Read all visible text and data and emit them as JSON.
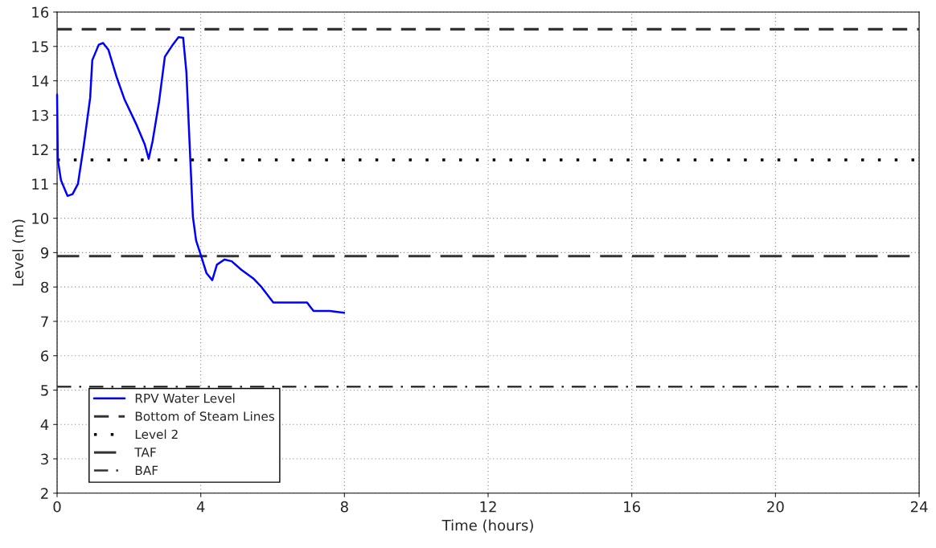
{
  "chart_data": {
    "type": "line",
    "xlabel": "Time (hours)",
    "ylabel": "Level (m)",
    "xlim": [
      0,
      24
    ],
    "xticks": [
      0,
      4,
      8,
      12,
      16,
      20,
      24
    ],
    "ylim": [
      2,
      16
    ],
    "yticks": [
      2,
      3,
      4,
      5,
      6,
      7,
      8,
      9,
      10,
      11,
      12,
      13,
      14,
      15,
      16
    ],
    "grid": true,
    "legend": "bottom left",
    "series": [
      {
        "name": "RPV Water Level",
        "color": "#0000ff",
        "line_style": "solid",
        "x": [
          0,
          0.02,
          0.11,
          0.29,
          0.43,
          0.58,
          0.74,
          0.92,
          0.98,
          1.16,
          1.28,
          1.43,
          1.66,
          1.88,
          2.22,
          2.44,
          2.55,
          2.66,
          2.84,
          3.0,
          3.22,
          3.38,
          3.51,
          3.6,
          3.69,
          3.78,
          3.87,
          4.01,
          4.16,
          4.32,
          4.45,
          4.66,
          4.86,
          5.13,
          5.46,
          5.69,
          6.02,
          6.96,
          7.03,
          7.14,
          7.59,
          7.99
        ],
        "values": [
          13.6,
          11.7,
          11.1,
          10.65,
          10.7,
          11.0,
          12.1,
          13.5,
          14.6,
          15.05,
          15.1,
          14.9,
          14.1,
          13.45,
          12.7,
          12.15,
          11.73,
          12.25,
          13.4,
          14.7,
          15.05,
          15.27,
          15.25,
          14.25,
          12.15,
          10.05,
          9.35,
          8.9,
          8.4,
          8.2,
          8.65,
          8.8,
          8.75,
          8.5,
          8.25,
          8.0,
          7.55,
          7.55,
          7.45,
          7.3,
          7.3,
          7.25
        ]
      },
      {
        "name": "Bottom of Steam Lines",
        "color": "#333333",
        "line_style": "dashed",
        "x": [
          0,
          24
        ],
        "values": [
          15.5,
          15.5
        ]
      },
      {
        "name": "Level 2",
        "color": "#000000",
        "line_style": "dotted",
        "x": [
          0,
          24
        ],
        "values": [
          11.7,
          11.7
        ]
      },
      {
        "name": "TAF",
        "color": "#333333",
        "line_style": "longdash",
        "x": [
          0,
          24
        ],
        "values": [
          8.9,
          8.9
        ]
      },
      {
        "name": "BAF",
        "color": "#333333",
        "line_style": "dashdot",
        "x": [
          0,
          24
        ],
        "values": [
          5.1,
          5.1
        ]
      }
    ]
  }
}
